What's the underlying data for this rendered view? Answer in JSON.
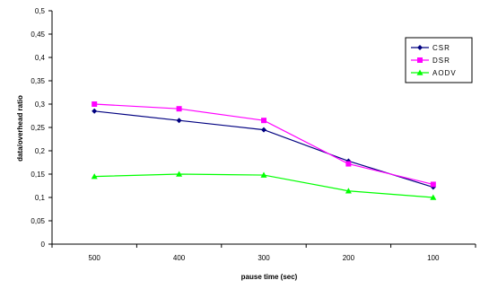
{
  "chart_data": {
    "type": "line",
    "title": "",
    "xlabel": "pause time (sec)",
    "ylabel": "data/overhead ratio",
    "categories": [
      "500",
      "400",
      "300",
      "200",
      "100"
    ],
    "ylim": [
      0,
      0.5
    ],
    "yticks": [
      0,
      0.05,
      0.1,
      0.15,
      0.2,
      0.25,
      0.3,
      0.35,
      0.4,
      0.45,
      0.5
    ],
    "ytick_labels": [
      "0",
      "0,05",
      "0,1",
      "0,15",
      "0,2",
      "0,25",
      "0,3",
      "0,35",
      "0,4",
      "0,45",
      "0,5"
    ],
    "grid": false,
    "legend_position": "top-right",
    "series": [
      {
        "name": "CSR",
        "values": [
          0.285,
          0.265,
          0.245,
          0.178,
          0.122
        ],
        "color": "#000080",
        "marker": "diamond"
      },
      {
        "name": "DSR",
        "values": [
          0.3,
          0.29,
          0.265,
          0.172,
          0.128
        ],
        "color": "#ff00ff",
        "marker": "square"
      },
      {
        "name": "AODV",
        "values": [
          0.145,
          0.15,
          0.148,
          0.114,
          0.1
        ],
        "color": "#00ff00",
        "marker": "triangle"
      }
    ]
  }
}
